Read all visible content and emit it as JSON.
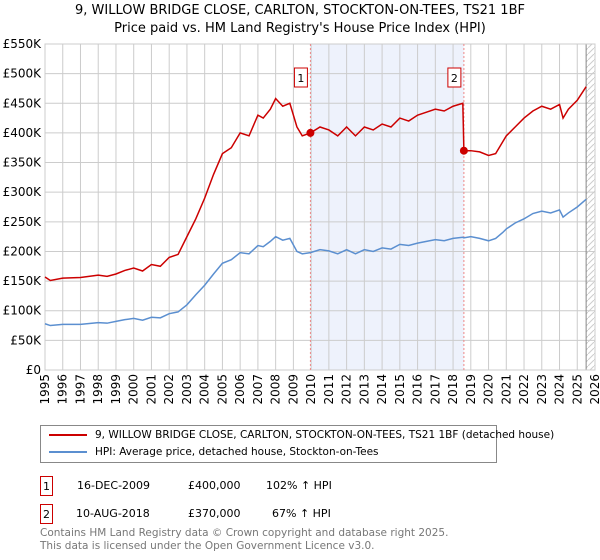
{
  "title": "9, WILLOW BRIDGE CLOSE, CARLTON, STOCKTON-ON-TEES, TS21 1BF",
  "subtitle": "Price paid vs. HM Land Registry's House Price Index (HPI)",
  "chart_data": {
    "type": "line",
    "xlim": [
      1995,
      2026
    ],
    "ylim": [
      0,
      550000
    ],
    "yticks": [
      0,
      50000,
      100000,
      150000,
      200000,
      250000,
      300000,
      350000,
      400000,
      450000,
      500000,
      550000
    ],
    "ytick_labels": [
      "£0",
      "£50K",
      "£100K",
      "£150K",
      "£200K",
      "£250K",
      "£300K",
      "£350K",
      "£400K",
      "£450K",
      "£500K",
      "£550K"
    ],
    "xticks": [
      1995,
      1996,
      1997,
      1998,
      1999,
      2000,
      2001,
      2002,
      2003,
      2004,
      2005,
      2006,
      2007,
      2008,
      2009,
      2010,
      2011,
      2012,
      2013,
      2014,
      2015,
      2016,
      2017,
      2018,
      2019,
      2020,
      2021,
      2022,
      2023,
      2024,
      2025,
      2026
    ],
    "grid": true,
    "shaded_span": [
      2009.96,
      2018.61
    ],
    "forecast_hatch_from": 2025.5,
    "series": [
      {
        "name": "9, WILLOW BRIDGE CLOSE, CARLTON, STOCKTON-ON-TEES, TS21 1BF (detached house)",
        "color": "#cc0000",
        "x": [
          1995,
          1995.3,
          1996,
          1997,
          1998,
          1998.5,
          1999,
          1999.5,
          2000,
          2000.5,
          2001,
          2001.5,
          2002,
          2002.5,
          2003,
          2003.5,
          2004,
          2004.5,
          2005,
          2005.5,
          2006,
          2006.5,
          2007,
          2007.3,
          2007.7,
          2008,
          2008.4,
          2008.8,
          2009.2,
          2009.5,
          2009.96,
          2010.5,
          2011,
          2011.5,
          2012,
          2012.5,
          2013,
          2013.5,
          2014,
          2014.5,
          2015,
          2015.5,
          2016,
          2016.5,
          2017,
          2017.5,
          2018,
          2018.55,
          2018.61,
          2019,
          2019.5,
          2020,
          2020.4,
          2020.8,
          2021,
          2021.5,
          2022,
          2022.5,
          2023,
          2023.5,
          2024,
          2024.2,
          2024.5,
          2025,
          2025.5
        ],
        "y": [
          157000,
          151000,
          155000,
          156000,
          160000,
          158000,
          162000,
          168000,
          172000,
          167000,
          178000,
          175000,
          190000,
          195000,
          225000,
          255000,
          290000,
          330000,
          365000,
          375000,
          400000,
          395000,
          430000,
          425000,
          440000,
          458000,
          445000,
          450000,
          410000,
          395000,
          400000,
          410000,
          405000,
          395000,
          410000,
          395000,
          410000,
          405000,
          415000,
          410000,
          425000,
          420000,
          430000,
          435000,
          440000,
          437000,
          445000,
          450000,
          370000,
          370000,
          368000,
          362000,
          365000,
          385000,
          395000,
          410000,
          425000,
          437000,
          445000,
          440000,
          448000,
          425000,
          440000,
          455000,
          478000
        ]
      },
      {
        "name": "HPI: Average price, detached house, Stockton-on-Tees",
        "color": "#5b8fd0",
        "x": [
          1995,
          1995.3,
          1996,
          1997,
          1998,
          1998.5,
          1999,
          1999.5,
          2000,
          2000.5,
          2001,
          2001.5,
          2002,
          2002.5,
          2003,
          2003.5,
          2004,
          2004.5,
          2005,
          2005.5,
          2006,
          2006.5,
          2007,
          2007.3,
          2007.7,
          2008,
          2008.4,
          2008.8,
          2009.2,
          2009.5,
          2009.96,
          2010.5,
          2011,
          2011.5,
          2012,
          2012.5,
          2013,
          2013.5,
          2014,
          2014.5,
          2015,
          2015.5,
          2016,
          2016.5,
          2017,
          2017.5,
          2018,
          2018.55,
          2018.61,
          2019,
          2019.5,
          2020,
          2020.4,
          2020.8,
          2021,
          2021.5,
          2022,
          2022.5,
          2023,
          2023.5,
          2024,
          2024.2,
          2024.5,
          2025,
          2025.5
        ],
        "y": [
          78000,
          75000,
          77000,
          77000,
          80000,
          79000,
          82000,
          85000,
          87000,
          84000,
          89000,
          88000,
          95000,
          98000,
          110000,
          127000,
          143000,
          162000,
          180000,
          186000,
          198000,
          196000,
          210000,
          208000,
          217000,
          225000,
          219000,
          222000,
          200000,
          196000,
          198000,
          203000,
          201000,
          196000,
          203000,
          196000,
          203000,
          200000,
          206000,
          204000,
          212000,
          210000,
          214000,
          217000,
          220000,
          218000,
          222000,
          224000,
          223000,
          225000,
          222000,
          218000,
          222000,
          232000,
          238000,
          248000,
          255000,
          264000,
          268000,
          265000,
          270000,
          258000,
          265000,
          275000,
          288000
        ]
      }
    ],
    "sales": [
      {
        "label": "1",
        "x": 2009.96,
        "y": 400000,
        "date": "16-DEC-2009",
        "price": "£400,000",
        "hpi": "102% ↑ HPI"
      },
      {
        "label": "2",
        "x": 2018.61,
        "y": 370000,
        "date": "10-AUG-2018",
        "price": "£370,000",
        "hpi": "67% ↑ HPI"
      }
    ]
  },
  "footer": [
    "Contains HM Land Registry data © Crown copyright and database right 2025.",
    "This data is licensed under the Open Government Licence v3.0."
  ]
}
